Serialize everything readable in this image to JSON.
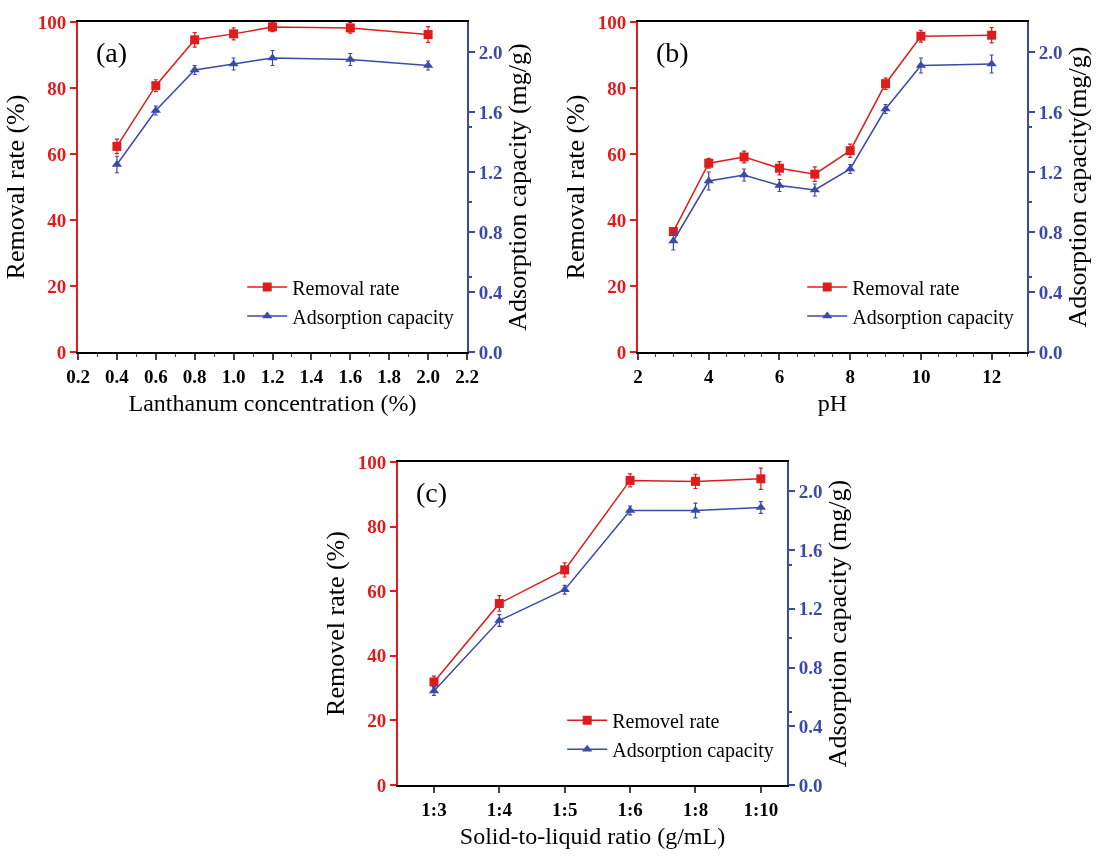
{
  "chart_data": [
    {
      "type": "line",
      "xlabel": "Lanthanum concentration (%)",
      "ylabel": "Removal rate (%)",
      "y2label": "Adsorption capacity (mg/g)",
      "annotations": [
        "(a)"
      ],
      "x": [
        0.4,
        0.6,
        0.8,
        1.0,
        1.2,
        1.6,
        2.0
      ],
      "xlim": [
        0.2,
        2.2
      ],
      "xticks": [
        {
          "value": 0.2,
          "label": "0.2"
        },
        {
          "value": 0.4,
          "label": "0.4"
        },
        {
          "value": 0.6,
          "label": "0.6"
        },
        {
          "value": 0.8,
          "label": "0.8"
        },
        {
          "value": 1.0,
          "label": "1.0"
        },
        {
          "value": 1.2,
          "label": "1.2"
        },
        {
          "value": 1.4,
          "label": "1.4"
        },
        {
          "value": 1.6,
          "label": "1.6"
        },
        {
          "value": 1.8,
          "label": "1.8"
        },
        {
          "value": 2.0,
          "label": "2.0"
        },
        {
          "value": 2.2,
          "label": "2.2"
        }
      ],
      "ylim": [
        0,
        100
      ],
      "yticks": [
        0,
        20,
        40,
        60,
        80,
        100
      ],
      "y2lim": [
        0,
        2.2
      ],
      "y2ticks": [
        {
          "value": 0,
          "label": "0.0"
        },
        {
          "value": 0.4,
          "label": "0.4"
        },
        {
          "value": 0.8,
          "label": "0.8"
        },
        {
          "value": 1.2,
          "label": "1.2"
        },
        {
          "value": 1.6,
          "label": "1.6"
        },
        {
          "value": 2.0,
          "label": "2.0"
        }
      ],
      "grid": false,
      "legend": "bottom right",
      "series": [
        {
          "name": "Removal rate",
          "color": "#dd1c1c",
          "marker": "square",
          "values": [
            62.3,
            80.7,
            94.6,
            96.4,
            98.5,
            98.2,
            96.2
          ],
          "errors": [
            2.2,
            1.8,
            2.2,
            1.8,
            1.4,
            1.6,
            2.4
          ]
        },
        {
          "name": "Adsorption capacity",
          "color": "#3a4aa8",
          "marker": "triangle",
          "axis": "y2",
          "values": [
            1.25,
            1.61,
            1.88,
            1.92,
            1.96,
            1.95,
            1.91
          ],
          "errors": [
            0.055,
            0.03,
            0.03,
            0.04,
            0.05,
            0.04,
            0.03
          ]
        }
      ]
    },
    {
      "type": "line",
      "xlabel": "pH",
      "ylabel": "Removal rate (%)",
      "y2label": "Adsorption capacity(mg/g)",
      "annotations": [
        "(b)"
      ],
      "x": [
        3,
        4,
        5,
        6,
        7,
        8,
        9,
        10,
        12
      ],
      "xlim": [
        2,
        13
      ],
      "xticks": [
        2,
        4,
        6,
        8,
        10,
        12
      ],
      "ylim": [
        0,
        100
      ],
      "yticks": [
        0,
        20,
        40,
        60,
        80,
        100
      ],
      "y2lim": [
        0,
        2.2
      ],
      "y2ticks": [
        {
          "value": 0,
          "label": "0.0"
        },
        {
          "value": 0.4,
          "label": "0.4"
        },
        {
          "value": 0.8,
          "label": "0.8"
        },
        {
          "value": 1.2,
          "label": "1.2"
        },
        {
          "value": 1.6,
          "label": "1.6"
        },
        {
          "value": 2.0,
          "label": "2.0"
        }
      ],
      "grid": false,
      "legend": "bottom right",
      "series": [
        {
          "name": "Removal rate",
          "color": "#dd1c1c",
          "marker": "square",
          "values": [
            36.5,
            57.2,
            59.1,
            55.7,
            53.9,
            61.0,
            81.3,
            95.7,
            96.0
          ],
          "errors": [
            null,
            1.5,
            1.8,
            2.0,
            2.2,
            2.0,
            1.7,
            1.8,
            2.3
          ]
        },
        {
          "name": "Adsorption capacity",
          "color": "#3a4aa8",
          "marker": "triangle",
          "axis": "y2",
          "values": [
            0.74,
            1.14,
            1.18,
            1.11,
            1.08,
            1.22,
            1.62,
            1.91,
            1.92
          ],
          "errors": [
            0.06,
            0.06,
            0.04,
            0.04,
            0.04,
            0.03,
            0.03,
            0.05,
            0.06
          ]
        }
      ]
    },
    {
      "type": "line",
      "xlabel": "Solid-to-liquid ratio (g/mL)",
      "ylabel": "Removel rate (%)",
      "y2label": "Adsorption capacity (mg/g)",
      "annotations": [
        "(c)"
      ],
      "categories": [
        "1:3",
        "1:4",
        "1:5",
        "1:6",
        "1:8",
        "1:10"
      ],
      "ylim": [
        0,
        100
      ],
      "yticks": [
        0,
        20,
        40,
        60,
        80,
        100
      ],
      "y2lim": [
        0,
        2.2
      ],
      "y2ticks": [
        {
          "value": 0,
          "label": "0.0"
        },
        {
          "value": 0.4,
          "label": "0.4"
        },
        {
          "value": 0.8,
          "label": "0.8"
        },
        {
          "value": 1.2,
          "label": "1.2"
        },
        {
          "value": 1.6,
          "label": "1.6"
        },
        {
          "value": 2.0,
          "label": "2.0"
        }
      ],
      "grid": false,
      "legend": "bottom right",
      "series": [
        {
          "name": "Removel rate",
          "color": "#dd1c1c",
          "marker": "square",
          "values": [
            31.9,
            56.2,
            66.6,
            94.3,
            94.0,
            94.8
          ],
          "errors": [
            1.8,
            2.4,
            2.2,
            2.0,
            2.2,
            3.3
          ]
        },
        {
          "name": "Adsorption capacity",
          "color": "#3a4aa8",
          "marker": "triangle",
          "axis": "y2",
          "values": [
            0.64,
            1.12,
            1.33,
            1.87,
            1.87,
            1.89
          ],
          "errors": [
            0.03,
            0.04,
            0.03,
            0.03,
            0.05,
            0.04
          ]
        }
      ]
    }
  ]
}
